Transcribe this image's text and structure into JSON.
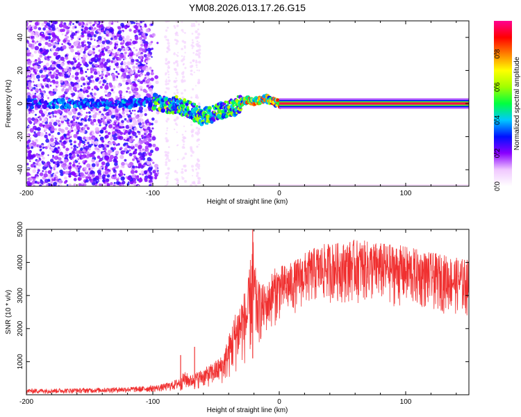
{
  "title": "YM08.2026.013.17.26.G15",
  "chart_data": [
    {
      "type": "heatmap",
      "xlabel": "Height of straight line (km)",
      "ylabel": "Frequency (Hz)",
      "xlim": [
        -200,
        150
      ],
      "ylim": [
        -50,
        50
      ],
      "x_ticks": [
        -200,
        -100,
        0,
        100
      ],
      "y_ticks": [
        -40,
        -20,
        0,
        20,
        40
      ],
      "colorbar": {
        "label": "Normalized spectral amplitude",
        "range": [
          0,
          1
        ],
        "ticks": [
          0.0,
          0.2,
          0.4,
          0.6,
          0.8
        ],
        "tick_labels": [
          "0.0",
          "0.2",
          "0.4",
          "0.6",
          "0.8"
        ],
        "colors": [
          "#ffffff",
          "#f0c8ff",
          "#8a00ff",
          "#0010ff",
          "#00c8ff",
          "#00ff40",
          "#a0ff00",
          "#ffff00",
          "#ff8000",
          "#ff0000",
          "#ff0090"
        ]
      },
      "ridge": {
        "description_points_x": [
          -200,
          -180,
          -160,
          -140,
          -120,
          -100,
          -90,
          -80,
          -70,
          -60,
          -50,
          -40,
          -35,
          -30,
          -25,
          -20,
          -15,
          -10,
          -5,
          0,
          20,
          60,
          100,
          150
        ],
        "description_points_y": [
          0,
          0,
          0,
          0,
          0,
          1,
          0,
          -1,
          -4,
          -8,
          -6,
          -3,
          -2,
          1,
          2,
          1,
          2,
          3,
          1,
          0,
          0,
          0,
          0,
          0
        ]
      }
    },
    {
      "type": "line",
      "xlabel": "Height of straight line (km)",
      "ylabel": "SNR (10 * v/v)",
      "xlim": [
        -200,
        150
      ],
      "ylim": [
        0,
        5000
      ],
      "x_ticks": [
        -200,
        -100,
        0,
        100
      ],
      "y_ticks": [
        1000,
        2000,
        3000,
        4000,
        5000
      ],
      "color": "#f03030",
      "envelope_x": [
        -200,
        -150,
        -110,
        -95,
        -85,
        -80,
        -75,
        -70,
        -65,
        -55,
        -45,
        -40,
        -35,
        -30,
        -25,
        -21,
        -18,
        -15,
        -10,
        -5,
        0,
        10,
        20,
        30,
        40,
        50,
        60,
        70,
        80,
        90,
        100,
        110,
        120,
        130,
        140,
        150
      ],
      "envelope_min": [
        20,
        40,
        60,
        80,
        100,
        120,
        140,
        160,
        180,
        220,
        300,
        400,
        600,
        800,
        900,
        1100,
        1300,
        1500,
        1800,
        2000,
        2200,
        2400,
        2600,
        2700,
        2750,
        2750,
        2750,
        2700,
        2700,
        2650,
        2600,
        2550,
        2500,
        2450,
        2400,
        2300
      ],
      "envelope_max": [
        180,
        200,
        250,
        300,
        400,
        500,
        700,
        600,
        700,
        900,
        1200,
        1800,
        2500,
        3000,
        3300,
        4900,
        3500,
        3400,
        3300,
        3800,
        3900,
        4000,
        4300,
        4500,
        4600,
        4600,
        4700,
        4650,
        4600,
        4550,
        4500,
        4400,
        4300,
        4250,
        4150,
        4100
      ],
      "spikes": [
        {
          "x": -78,
          "y": 1200
        },
        {
          "x": -67,
          "y": 1450
        },
        {
          "x": -21,
          "y": 5000
        }
      ]
    }
  ]
}
